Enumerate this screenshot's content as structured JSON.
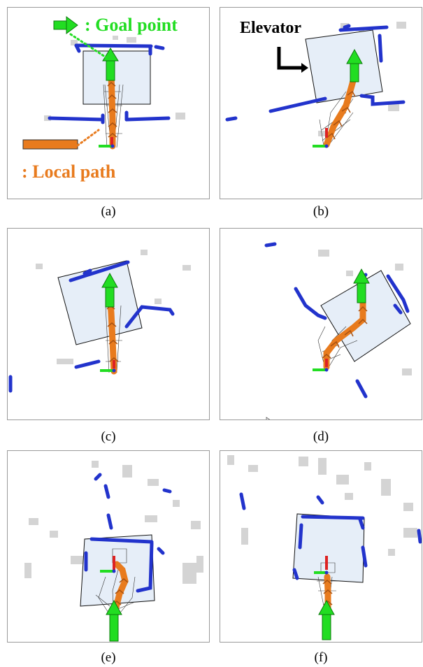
{
  "legend": {
    "goal_point": ": Goal point",
    "local_path": ": Local path",
    "elevator": "Elevator"
  },
  "colors": {
    "goal_green": "#22dd22",
    "path_orange": "#e87b1e",
    "wall_blue": "#2233cc",
    "elevator_fill": "#e6eef8",
    "obstacle_gray": "#cfcfcf",
    "robot_red": "#dd2222"
  },
  "captions": {
    "a": "(a)",
    "b": "(b)",
    "c": "(c)",
    "d": "(d)",
    "e": "(e)",
    "f": "(f)"
  }
}
